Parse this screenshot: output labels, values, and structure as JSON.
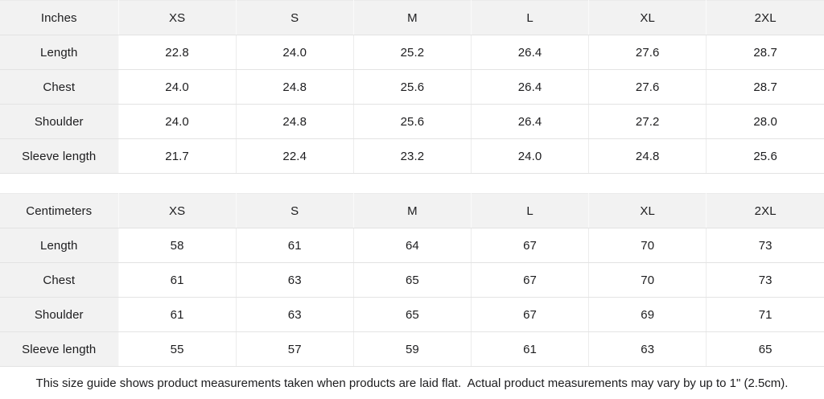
{
  "colors": {
    "header_bg": "#f2f2f2",
    "label_bg": "#f2f2f2",
    "data_bg": "#ffffff",
    "border_horizontal": "#e3e3e3",
    "border_vertical": "#ececec",
    "text": "#1d1d1f"
  },
  "tables": [
    {
      "unit_label": "Inches",
      "columns": [
        "XS",
        "S",
        "M",
        "L",
        "XL",
        "2XL"
      ],
      "rows": [
        {
          "label": "Length",
          "values": [
            "22.8",
            "24.0",
            "25.2",
            "26.4",
            "27.6",
            "28.7"
          ]
        },
        {
          "label": "Chest",
          "values": [
            "24.0",
            "24.8",
            "25.6",
            "26.4",
            "27.6",
            "28.7"
          ]
        },
        {
          "label": "Shoulder",
          "values": [
            "24.0",
            "24.8",
            "25.6",
            "26.4",
            "27.2",
            "28.0"
          ]
        },
        {
          "label": "Sleeve length",
          "values": [
            "21.7",
            "22.4",
            "23.2",
            "24.0",
            "24.8",
            "25.6"
          ]
        }
      ]
    },
    {
      "unit_label": "Centimeters",
      "columns": [
        "XS",
        "S",
        "M",
        "L",
        "XL",
        "2XL"
      ],
      "rows": [
        {
          "label": "Length",
          "values": [
            "58",
            "61",
            "64",
            "67",
            "70",
            "73"
          ]
        },
        {
          "label": "Chest",
          "values": [
            "61",
            "63",
            "65",
            "67",
            "70",
            "73"
          ]
        },
        {
          "label": "Shoulder",
          "values": [
            "61",
            "63",
            "65",
            "67",
            "69",
            "71"
          ]
        },
        {
          "label": "Sleeve length",
          "values": [
            "55",
            "57",
            "59",
            "61",
            "63",
            "65"
          ]
        }
      ]
    }
  ],
  "footer": {
    "note": "This size guide shows product measurements taken when products are laid flat.  Actual product measurements may vary by up to 1\" (2.5cm)."
  }
}
